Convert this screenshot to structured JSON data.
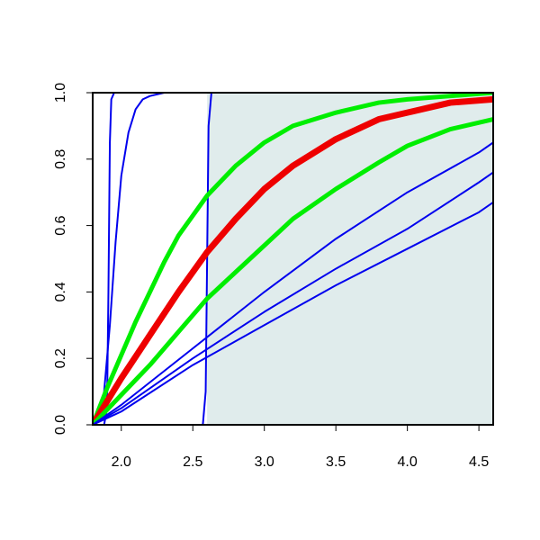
{
  "chart_data": {
    "type": "line",
    "title": "",
    "xlabel": "",
    "ylabel": "",
    "xlim": [
      1.8,
      4.6
    ],
    "ylim": [
      0,
      1
    ],
    "grid": false,
    "x_ticks": [
      "2.0",
      "2.5",
      "3.0",
      "3.5",
      "4.0",
      "4.5"
    ],
    "y_ticks": [
      "0.0",
      "0.2",
      "0.4",
      "0.6",
      "0.8",
      "1.0"
    ],
    "shaded_region": {
      "x_from": 2.6,
      "x_to": 4.6,
      "color": "#e0ecec"
    },
    "series": [
      {
        "color": "#0000ee",
        "width": 2,
        "x": [
          1.8,
          1.88,
          1.9,
          1.91,
          1.92,
          1.93,
          1.95,
          2.0,
          2.6,
          4.6
        ],
        "y": [
          0,
          0.0,
          0.05,
          0.4,
          0.85,
          0.98,
          1.0,
          1.0,
          1.0,
          1.0
        ]
      },
      {
        "color": "#0000ee",
        "width": 2,
        "x": [
          1.8,
          1.85,
          1.88,
          1.92,
          1.96,
          2.0,
          2.05,
          2.1,
          2.15,
          2.2,
          2.3,
          2.4,
          2.6,
          4.6
        ],
        "y": [
          0,
          0.03,
          0.1,
          0.3,
          0.55,
          0.75,
          0.88,
          0.95,
          0.98,
          0.99,
          1.0,
          1.0,
          1.0,
          1.0
        ]
      },
      {
        "color": "#0000ee",
        "width": 2,
        "x": [
          1.8,
          2.0,
          2.5,
          2.57,
          2.59,
          2.6,
          2.61,
          2.63,
          2.7,
          3.0,
          4.6
        ],
        "y": [
          0,
          0,
          0,
          0.0,
          0.1,
          0.5,
          0.9,
          1.0,
          1.0,
          1.0,
          1.0
        ]
      },
      {
        "color": "#00ee00",
        "width": 5,
        "x": [
          1.8,
          1.9,
          2.0,
          2.1,
          2.2,
          2.3,
          2.4,
          2.5,
          2.6,
          2.8,
          3.0,
          3.2,
          3.5,
          3.8,
          4.0,
          4.3,
          4.6
        ],
        "y": [
          0,
          0.11,
          0.21,
          0.31,
          0.4,
          0.49,
          0.57,
          0.63,
          0.69,
          0.78,
          0.85,
          0.9,
          0.94,
          0.97,
          0.98,
          0.99,
          1.0
        ]
      },
      {
        "color": "#ee0000",
        "width": 7,
        "x": [
          1.8,
          1.9,
          2.0,
          2.2,
          2.4,
          2.6,
          2.8,
          3.0,
          3.2,
          3.5,
          3.8,
          4.0,
          4.3,
          4.6
        ],
        "y": [
          0,
          0.07,
          0.14,
          0.27,
          0.4,
          0.52,
          0.62,
          0.71,
          0.78,
          0.86,
          0.92,
          0.94,
          0.97,
          0.98
        ]
      },
      {
        "color": "#00ee00",
        "width": 5,
        "x": [
          1.8,
          2.0,
          2.2,
          2.4,
          2.6,
          2.8,
          3.0,
          3.2,
          3.5,
          3.8,
          4.0,
          4.3,
          4.6
        ],
        "y": [
          0,
          0.09,
          0.18,
          0.28,
          0.38,
          0.46,
          0.54,
          0.62,
          0.71,
          0.79,
          0.84,
          0.89,
          0.92
        ]
      },
      {
        "color": "#0000ee",
        "width": 2,
        "x": [
          1.8,
          2.0,
          2.5,
          3.0,
          3.5,
          4.0,
          4.5,
          4.6
        ],
        "y": [
          0,
          0.06,
          0.23,
          0.4,
          0.56,
          0.7,
          0.82,
          0.85
        ]
      },
      {
        "color": "#0000ee",
        "width": 2,
        "x": [
          1.8,
          2.0,
          2.5,
          3.0,
          3.5,
          4.0,
          4.5,
          4.6
        ],
        "y": [
          0,
          0.05,
          0.2,
          0.34,
          0.47,
          0.59,
          0.73,
          0.76
        ]
      },
      {
        "color": "#0000ee",
        "width": 2,
        "x": [
          1.8,
          2.0,
          2.5,
          3.0,
          3.5,
          4.0,
          4.5,
          4.6
        ],
        "y": [
          0,
          0.04,
          0.18,
          0.3,
          0.42,
          0.53,
          0.64,
          0.67
        ]
      }
    ]
  }
}
